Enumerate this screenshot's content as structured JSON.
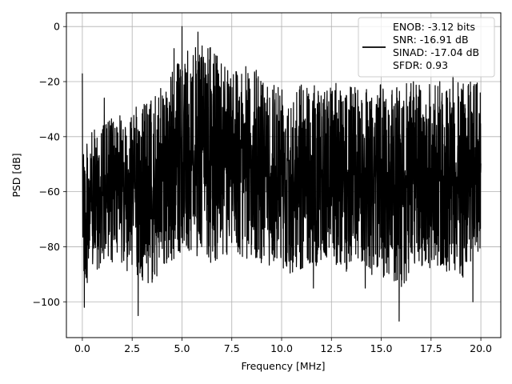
{
  "chart_data": {
    "type": "line",
    "title": "",
    "xlabel": "Frequency [MHz]",
    "ylabel": "PSD [dB]",
    "xlim": [
      -0.8,
      21.0
    ],
    "ylim": [
      -113,
      5
    ],
    "x_ticks": [
      0.0,
      2.5,
      5.0,
      7.5,
      10.0,
      12.5,
      15.0,
      17.5,
      20.0
    ],
    "x_tick_labels": [
      "0.0",
      "2.5",
      "5.0",
      "7.5",
      "10.0",
      "12.5",
      "15.0",
      "17.5",
      "20.0"
    ],
    "y_ticks": [
      0,
      -20,
      -40,
      -60,
      -80,
      -100
    ],
    "y_tick_labels": [
      "0",
      "−20",
      "−40",
      "−60",
      "−80",
      "−100"
    ],
    "grid": true,
    "legend_position": "top-right",
    "line_color": "#000000",
    "legend_entries": [
      "ENOB: -3.12 bits",
      "SNR: -16.91 dB",
      "SINAD: -17.04 dB",
      "SFDR: 0.93"
    ],
    "series": [
      {
        "description_envelope": true,
        "x": [
          0.0,
          0.05,
          0.1,
          0.5,
          1.0,
          1.5,
          2.0,
          2.5,
          3.0,
          3.5,
          4.0,
          4.5,
          5.0,
          5.5,
          6.0,
          6.5,
          7.0,
          7.5,
          8.0,
          8.5,
          9.0,
          9.5,
          10.0,
          10.5,
          11.0,
          11.5,
          12.0,
          12.5,
          13.0,
          13.5,
          14.0,
          14.5,
          15.0,
          15.5,
          16.0,
          16.5,
          17.0,
          17.5,
          18.0,
          18.5,
          19.0,
          19.5,
          20.0
        ],
        "upper": [
          -18,
          -40,
          -44,
          -38,
          -35,
          -33,
          -32,
          -30,
          -28,
          -25,
          -22,
          -15,
          -10,
          -8,
          -5,
          -8,
          -10,
          -12,
          -14,
          -15,
          -16,
          -18,
          -18,
          -20,
          -19,
          -20,
          -22,
          -21,
          -20,
          -20,
          -20,
          -21,
          -21,
          -22,
          -20,
          -20,
          -20,
          -20,
          -19,
          -20,
          -19,
          -20,
          -20
        ],
        "lower": [
          -76,
          -88,
          -95,
          -90,
          -88,
          -86,
          -88,
          -90,
          -92,
          -95,
          -90,
          -85,
          -82,
          -82,
          -85,
          -86,
          -85,
          -82,
          -84,
          -85,
          -86,
          -87,
          -88,
          -90,
          -88,
          -86,
          -88,
          -87,
          -90,
          -88,
          -86,
          -90,
          -92,
          -92,
          -95,
          -90,
          -88,
          -88,
          -88,
          -90,
          -92,
          -88,
          -80
        ],
        "spikes": [
          [
            0.0,
            -17
          ],
          [
            0.1,
            -102
          ],
          [
            1.1,
            -26
          ],
          [
            2.8,
            -105
          ],
          [
            4.6,
            -8
          ],
          [
            5.0,
            0
          ],
          [
            5.8,
            -2
          ],
          [
            6.3,
            -8
          ],
          [
            11.6,
            -95
          ],
          [
            14.2,
            -95
          ],
          [
            15.9,
            -107
          ],
          [
            18.6,
            -18
          ],
          [
            19.6,
            -100
          ]
        ]
      }
    ]
  }
}
